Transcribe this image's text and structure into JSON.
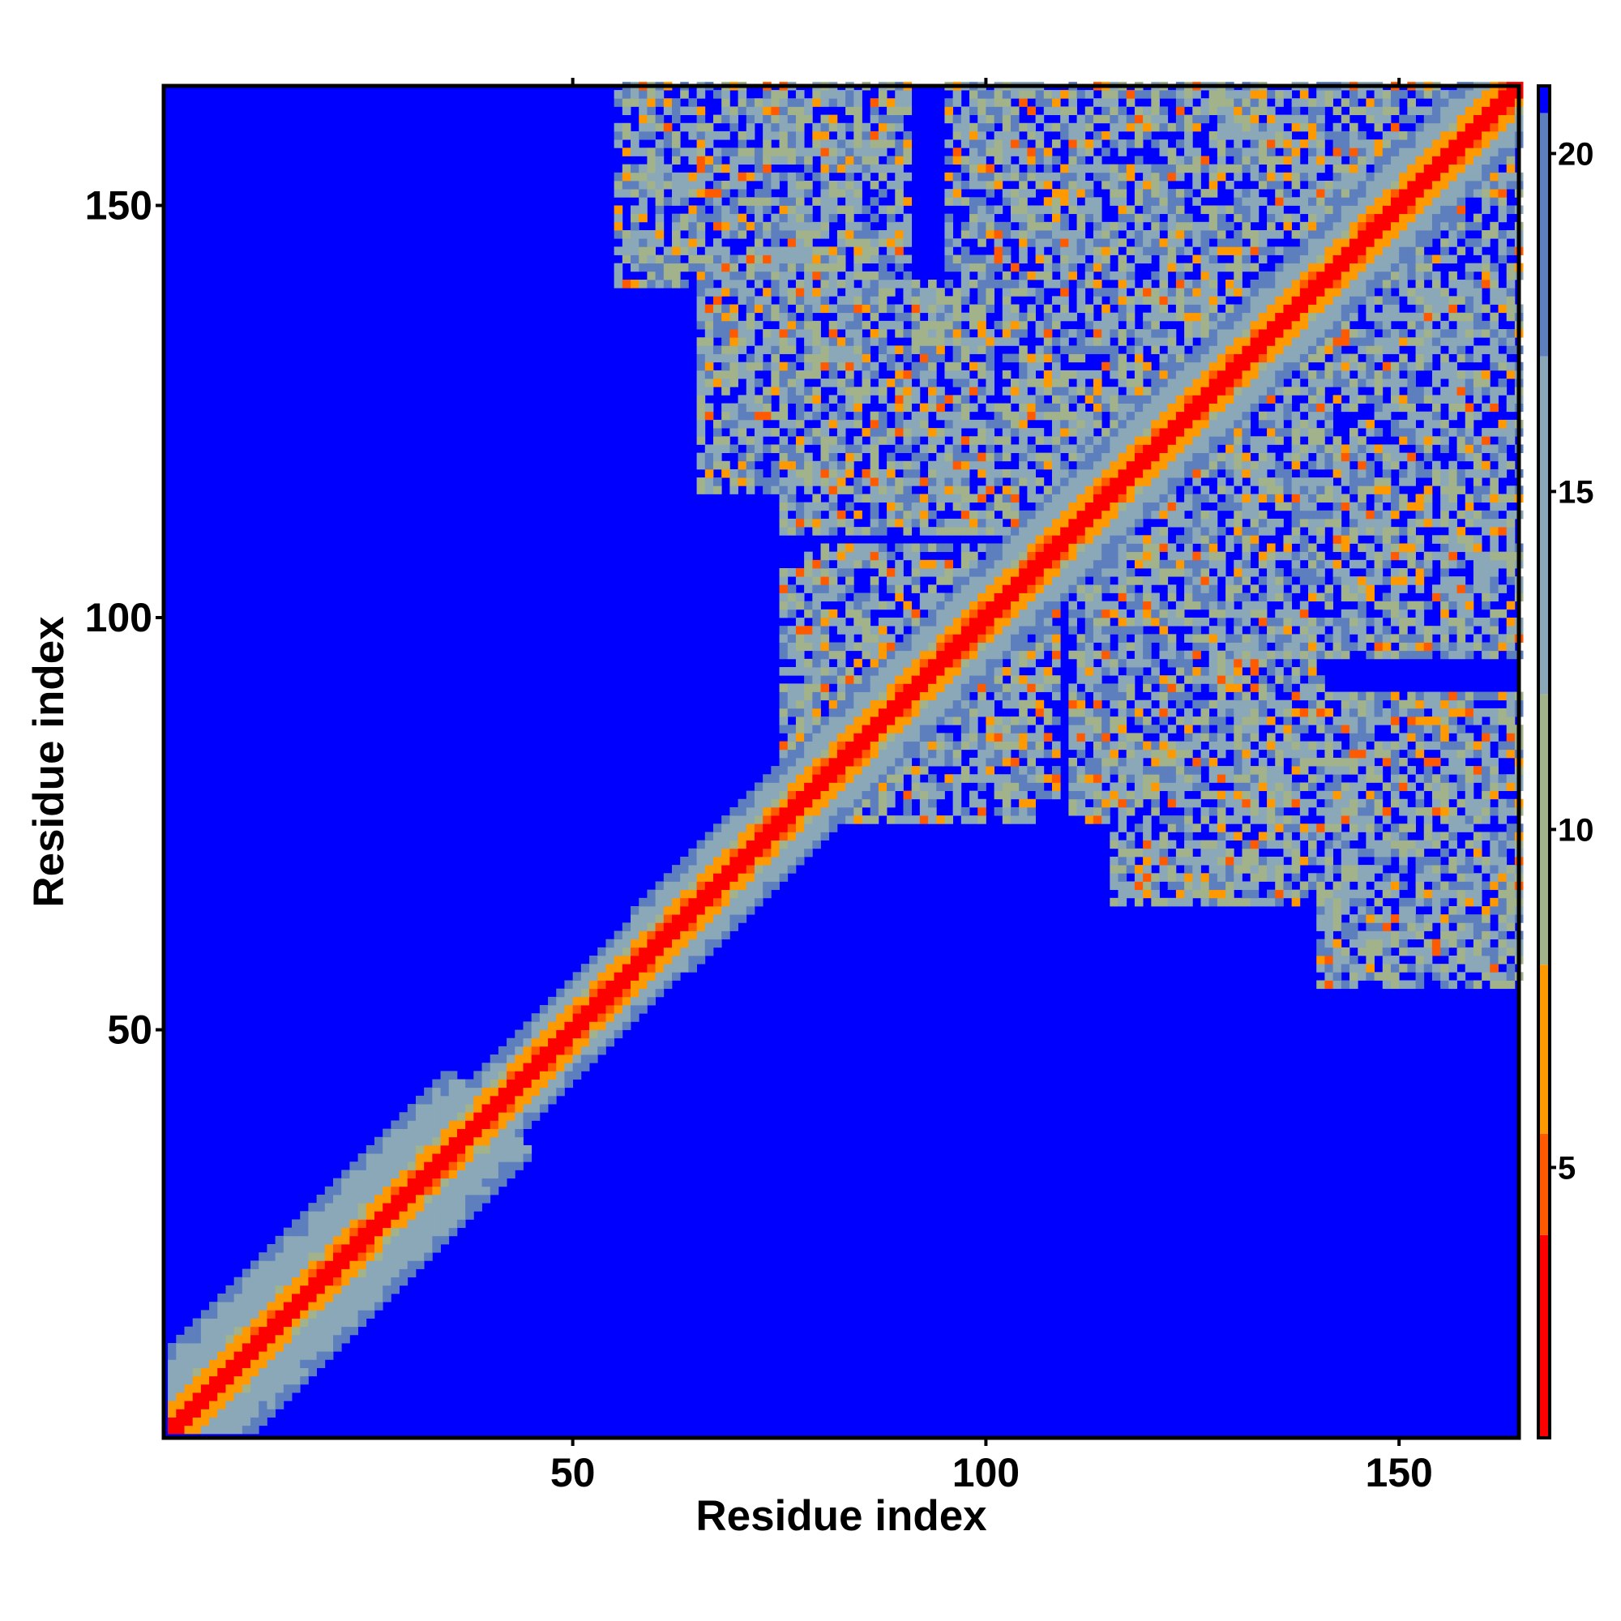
{
  "chart_data": {
    "type": "heatmap",
    "title": "",
    "xlabel": "Residue index",
    "ylabel": "Residue index",
    "n_residues": 164,
    "xlim": [
      1,
      164
    ],
    "ylim": [
      1,
      164
    ],
    "x_ticks": [
      50,
      100,
      150
    ],
    "y_ticks": [
      50,
      100,
      150
    ],
    "x_tick_labels": [
      "50",
      "100",
      "150"
    ],
    "y_tick_labels": [
      "50",
      "100",
      "150"
    ],
    "value_range": [
      1,
      21
    ],
    "colorbar": {
      "ticks": [
        5,
        10,
        15,
        20
      ],
      "tick_labels": [
        "5",
        "10",
        "15",
        "20"
      ],
      "bands": [
        {
          "from": 1,
          "to": 4,
          "color": "#ff0000"
        },
        {
          "from": 4,
          "to": 5.5,
          "color": "#ff5a00"
        },
        {
          "from": 5.5,
          "to": 8,
          "color": "#ff9900"
        },
        {
          "from": 8,
          "to": 12,
          "color": "#a2b28a"
        },
        {
          "from": 12,
          "to": 17,
          "color": "#8ba8b8"
        },
        {
          "from": 17,
          "to": 21,
          "color": "#5d7fbd"
        }
      ]
    },
    "background_color": "#0000ff",
    "description_of_pattern": {
      "diagonal_band": "low values (red/orange) along main diagonal, widening to green/grey band",
      "contact_blocks": [
        {
          "x": [
            55,
            90
          ],
          "y": [
            140,
            164
          ]
        },
        {
          "x": [
            65,
            100
          ],
          "y": [
            115,
            140
          ]
        },
        {
          "x": [
            95,
            164
          ],
          "y": [
            110,
            164
          ]
        },
        {
          "x": [
            110,
            140
          ],
          "y": [
            75,
            110
          ]
        },
        {
          "x": [
            140,
            164
          ],
          "y": [
            55,
            85
          ]
        },
        {
          "x": [
            78,
            105
          ],
          "y": [
            75,
            108
          ]
        }
      ]
    }
  }
}
